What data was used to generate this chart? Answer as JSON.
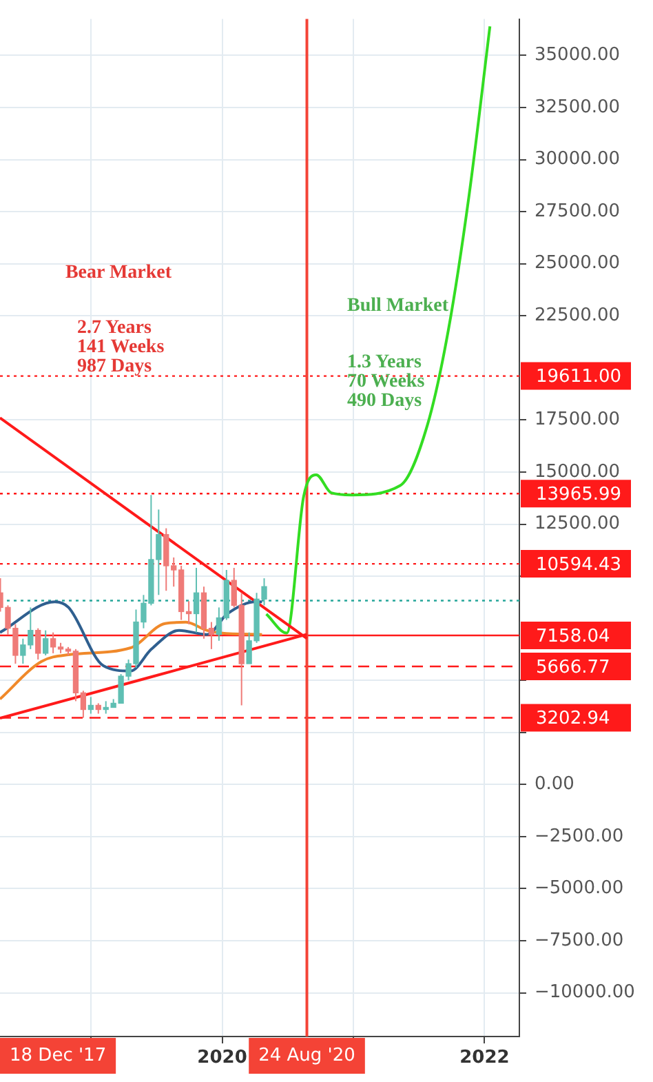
{
  "chart_data": {
    "type": "candlestick",
    "x": [
      "2018-04-23",
      "2018-05-14",
      "2018-06-04",
      "2018-06-25",
      "2018-07-16",
      "2018-08-06",
      "2018-08-27",
      "2018-09-17",
      "2018-10-08",
      "2018-10-29",
      "2018-11-19",
      "2018-12-10",
      "2018-12-31",
      "2019-01-21",
      "2019-02-11",
      "2019-03-04",
      "2019-03-25",
      "2019-04-15",
      "2019-05-06",
      "2019-05-27",
      "2019-06-17",
      "2019-07-08",
      "2019-07-29",
      "2019-08-19",
      "2019-09-09",
      "2019-09-30",
      "2019-10-21",
      "2019-11-11",
      "2019-12-02",
      "2019-12-23",
      "2020-01-13",
      "2020-02-03",
      "2020-02-24",
      "2020-03-16",
      "2020-04-06",
      "2020-04-27"
    ],
    "ohlc": [
      [
        9200,
        9900,
        8300,
        8500
      ],
      [
        8500,
        8600,
        7200,
        7500
      ],
      [
        7500,
        7700,
        5800,
        6200
      ],
      [
        6200,
        7000,
        5800,
        6700
      ],
      [
        6700,
        8500,
        6500,
        7400
      ],
      [
        7400,
        7500,
        6000,
        6300
      ],
      [
        6300,
        7400,
        6200,
        7000
      ],
      [
        7000,
        7300,
        6300,
        6600
      ],
      [
        6600,
        6800,
        6300,
        6500
      ],
      [
        6500,
        6600,
        6200,
        6400
      ],
      [
        6400,
        6500,
        4000,
        4400
      ],
      [
        4400,
        4500,
        3200,
        3600
      ],
      [
        3600,
        4200,
        3400,
        3800
      ],
      [
        3800,
        3900,
        3400,
        3600
      ],
      [
        3600,
        4000,
        3400,
        3700
      ],
      [
        3700,
        4100,
        3700,
        3900
      ],
      [
        3900,
        5300,
        3900,
        5200
      ],
      [
        5200,
        6000,
        5000,
        5800
      ],
      [
        5800,
        8400,
        5600,
        7800
      ],
      [
        7800,
        9100,
        7500,
        8700
      ],
      [
        8700,
        13900,
        8600,
        10800
      ],
      [
        10800,
        13200,
        9100,
        12000
      ],
      [
        12000,
        12300,
        9300,
        10500
      ],
      [
        10500,
        10900,
        9500,
        10300
      ],
      [
        10300,
        10500,
        7900,
        8300
      ],
      [
        8300,
        8800,
        7700,
        8200
      ],
      [
        8200,
        10400,
        7300,
        9200
      ],
      [
        9200,
        9500,
        7000,
        7500
      ],
      [
        7500,
        7800,
        6500,
        7200
      ],
      [
        7200,
        8500,
        6900,
        8000
      ],
      [
        8000,
        10300,
        7900,
        9800
      ],
      [
        9800,
        10400,
        8500,
        8600
      ],
      [
        8600,
        9200,
        3800,
        5800
      ],
      [
        5800,
        7300,
        5800,
        6900
      ],
      [
        6900,
        9200,
        6800,
        8900
      ],
      [
        8900,
        9900,
        8600,
        9500
      ]
    ],
    "colors": [
      "#ef7b78",
      "#ef7b78",
      "#ef7b78",
      "#5fbfb3",
      "#5fbfb3",
      "#ef7b78",
      "#5fbfb3",
      "#ef7b78",
      "#ef7b78",
      "#ef7b78",
      "#ef7b78",
      "#ef7b78",
      "#5fbfb3",
      "#ef7b78",
      "#5fbfb3",
      "#5fbfb3",
      "#5fbfb3",
      "#5fbfb3",
      "#5fbfb3",
      "#5fbfb3",
      "#5fbfb3",
      "#5fbfb3",
      "#ef7b78",
      "#ef7b78",
      "#ef7b78",
      "#ef7b78",
      "#5fbfb3",
      "#ef7b78",
      "#ef7b78",
      "#5fbfb3",
      "#5fbfb3",
      "#ef7b78",
      "#ef7b78",
      "#5fbfb3",
      "#5fbfb3",
      "#5fbfb3"
    ],
    "series": [
      {
        "type": "line",
        "color": "#2f5f8f",
        "x": [
          "2018-04-22",
          "2018-09-22",
          "2018-10-30",
          "2019-02-04",
          "2019-04-21",
          "2019-06-18",
          "2019-09-03",
          "2019-11-19",
          "2020-01-16",
          "2020-04-02",
          "2020-04-21"
        ],
        "values": [
          7300,
          8770,
          8500,
          5700,
          5450,
          6500,
          7400,
          7200,
          8200,
          8770,
          8770
        ]
      },
      {
        "type": "line",
        "color": "#f0892a",
        "x": [
          "2018-04-22",
          "2018-08-15",
          "2018-10-30",
          "2019-04-21",
          "2019-07-26",
          "2019-09-22",
          "2019-11-19",
          "2019-12-28",
          "2020-04-21"
        ],
        "values": [
          4100,
          5900,
          6230,
          6560,
          7730,
          7790,
          7400,
          7270,
          7200
        ]
      },
      {
        "type": "line",
        "color": "#ff1a1a",
        "x": [
          "2018-04-22",
          "2020-08-24"
        ],
        "values": [
          17600,
          7010
        ]
      },
      {
        "type": "line",
        "color": "#ff1a1a",
        "x": [
          "2018-04-22",
          "2020-08-24"
        ],
        "values": [
          3180,
          7210
        ]
      },
      {
        "type": "line",
        "color": "#33dd22",
        "x": [
          "2020-05-03",
          "2020-06-29",
          "2020-08-15",
          "2020-09-19",
          "2020-10-31",
          "2020-12-28",
          "2021-05-11",
          "2021-07-26",
          "2021-09-22",
          "2021-11-19",
          "2022-01-16"
        ],
        "values": [
          8180,
          7270,
          13830,
          14870,
          14000,
          13900,
          14350,
          17270,
          21800,
          28300,
          36400
        ]
      }
    ],
    "ref_lines": [
      {
        "axis": "y",
        "value": 19611,
        "label": "19611.00",
        "color": "#ff1a1a",
        "line_style": "dotted"
      },
      {
        "axis": "y",
        "value": 13965.99,
        "label": "13965.99",
        "color": "#ff1a1a",
        "line_style": "dotted"
      },
      {
        "axis": "y",
        "value": 10594.43,
        "label": "10594.43",
        "color": "#ff1a1a",
        "line_style": "dotted"
      },
      {
        "axis": "y",
        "value": 8830,
        "label": null,
        "color": "#26a69a",
        "line_style": "dotted"
      },
      {
        "axis": "y",
        "value": 7158.04,
        "label": "7158.04",
        "color": "#ff1a1a",
        "line_style": "solid"
      },
      {
        "axis": "y",
        "value": 5666.77,
        "label": "5666.77",
        "color": "#ff1a1a",
        "line_style": "dashed"
      },
      {
        "axis": "y",
        "value": 3202.94,
        "label": "3202.94",
        "color": "#ff1a1a",
        "line_style": "dashed"
      },
      {
        "axis": "x",
        "value": "2020-08-24",
        "label": "24 Aug '20",
        "color": "#f44336",
        "line_style": "solid"
      }
    ],
    "annotations": [
      "Bear Market",
      "2.7 Years\n141 Weeks\n987 Days",
      "Bull Market",
      "1.3 Years\n70 Weeks\n490 Days",
      "18 Dec '17"
    ],
    "xlim": [
      "2018-04-22",
      "2022-04-08"
    ],
    "xticks": [
      {
        "value": "2019-01-01",
        "label": null
      },
      {
        "value": "2020-01-01",
        "label": "2020"
      },
      {
        "value": "2021-01-01",
        "label": null
      },
      {
        "value": "2022-01-01",
        "label": "2022"
      }
    ],
    "ylim": [
      -12100,
      36750
    ],
    "yticks": [
      {
        "value": 35000,
        "label": "35000.00"
      },
      {
        "value": 32500,
        "label": "32500.00"
      },
      {
        "value": 30000,
        "label": "30000.00"
      },
      {
        "value": 27500,
        "label": "27500.00"
      },
      {
        "value": 25000,
        "label": "25000.00"
      },
      {
        "value": 22500,
        "label": "22500.00"
      },
      {
        "value": 17500,
        "label": "17500.00"
      },
      {
        "value": 15000,
        "label": "15000.00"
      },
      {
        "value": 12500,
        "label": "12500.00"
      },
      {
        "value": 10000,
        "label": null
      },
      {
        "value": 5000,
        "label": null
      },
      {
        "value": 2500,
        "label": null
      },
      {
        "value": 0,
        "label": "0.00"
      },
      {
        "value": -2500,
        "label": "−2500.00"
      },
      {
        "value": -5000,
        "label": "−5000.00"
      },
      {
        "value": -7500,
        "label": "−7500.00"
      },
      {
        "value": -10000,
        "label": "−10000.00"
      }
    ],
    "grid": true,
    "legend": false,
    "marker": "none"
  }
}
